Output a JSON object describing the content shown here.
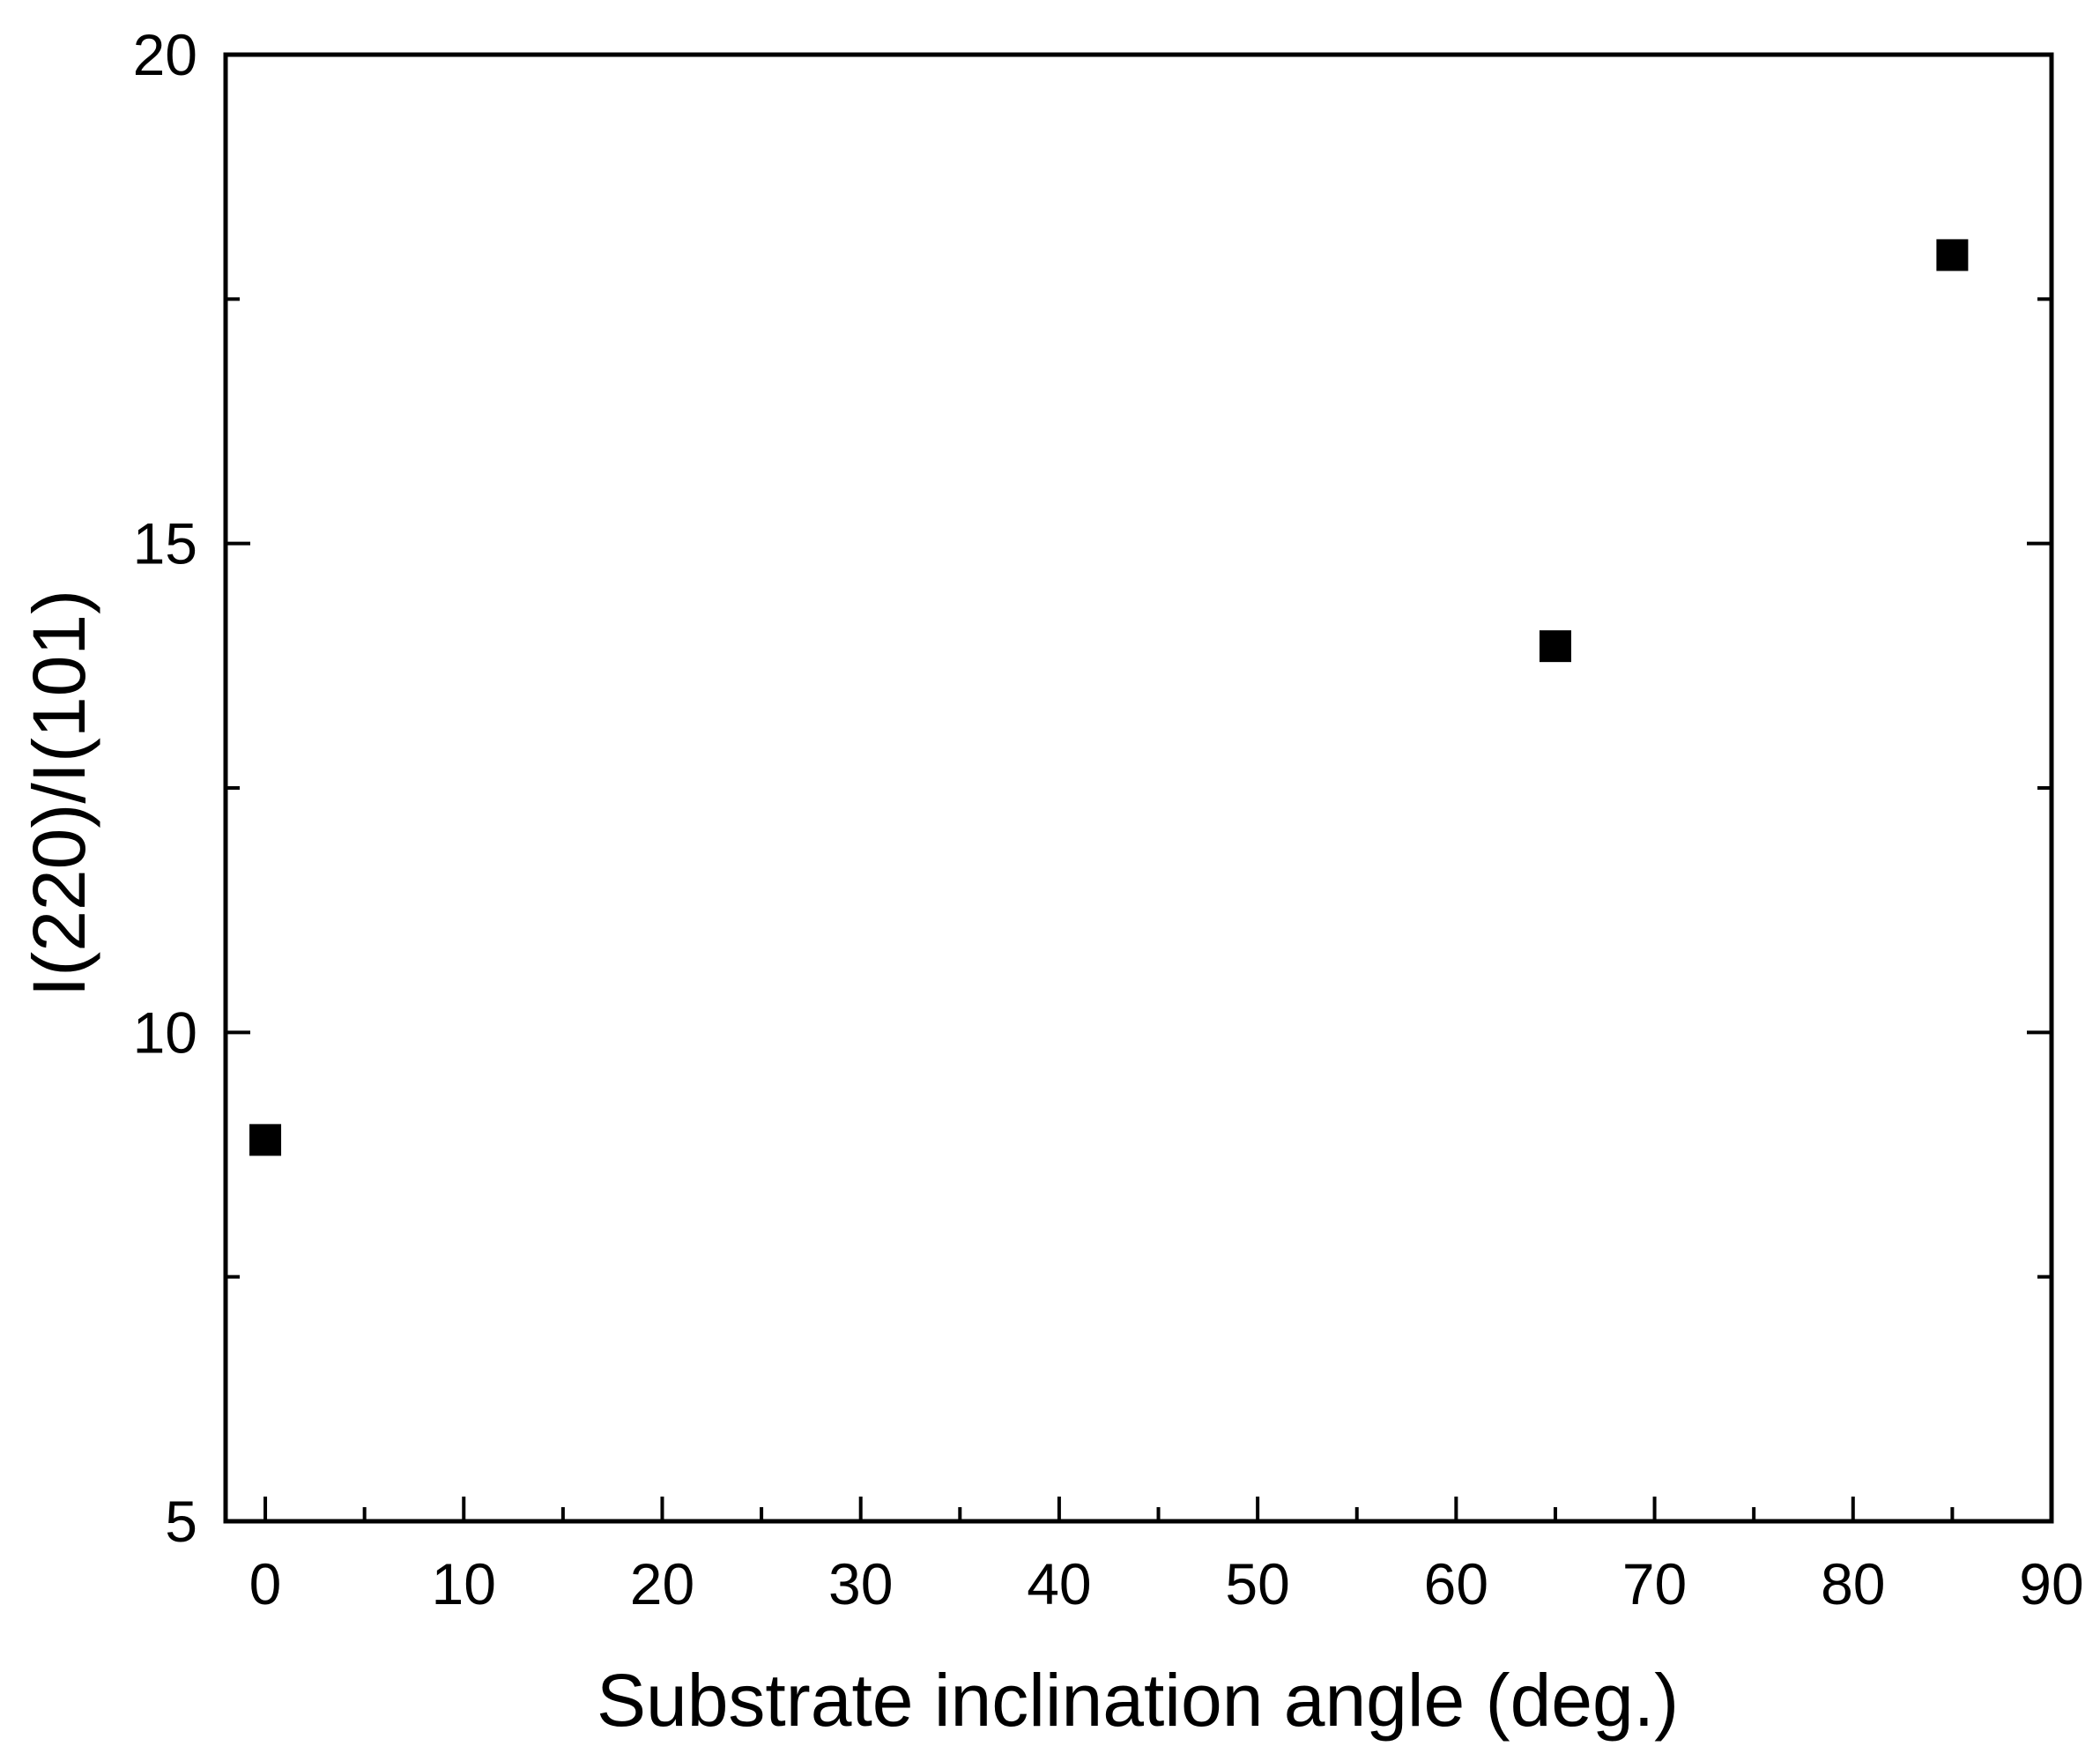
{
  "chart_data": {
    "type": "scatter",
    "title": "",
    "xlabel": "Substrate inclination angle (deg.)",
    "ylabel": "I(220)/I(101)",
    "xlim": [
      -2,
      90
    ],
    "ylim": [
      5,
      20
    ],
    "x_ticks": [
      0,
      10,
      20,
      30,
      40,
      50,
      60,
      70,
      80,
      90
    ],
    "x_minor_ticks": [
      5,
      15,
      25,
      35,
      45,
      55,
      65,
      75,
      85
    ],
    "y_ticks": [
      5,
      10,
      15,
      20
    ],
    "y_minor_ticks": [
      7.5,
      12.5,
      17.5
    ],
    "x_tick_labels": [
      "0",
      "10",
      "20",
      "30",
      "40",
      "50",
      "60",
      "70",
      "80",
      "90"
    ],
    "y_tick_labels": [
      "5",
      "10",
      "15",
      "20"
    ],
    "grid": false,
    "legend": null,
    "marker": "square",
    "marker_color": "#000000",
    "series": [
      {
        "x": [
          0,
          65,
          85
        ],
        "y": [
          8.9,
          13.95,
          17.95
        ]
      }
    ]
  }
}
